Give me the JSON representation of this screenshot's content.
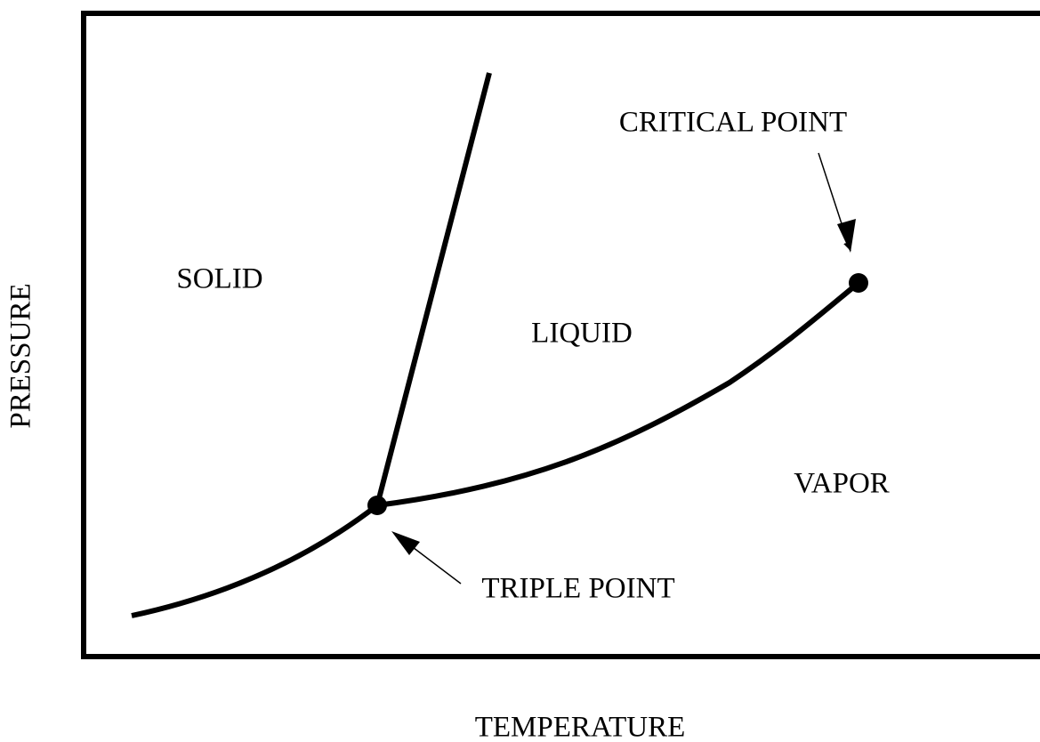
{
  "axes": {
    "x_label": "TEMPERATURE",
    "y_label": "PRESSURE"
  },
  "regions": [
    {
      "label": "SOLID"
    },
    {
      "label": "LIQUID"
    },
    {
      "label": "VAPOR"
    }
  ],
  "points": [
    {
      "label": "CRITICAL POINT"
    },
    {
      "label": "TRIPLE POINT"
    }
  ]
}
